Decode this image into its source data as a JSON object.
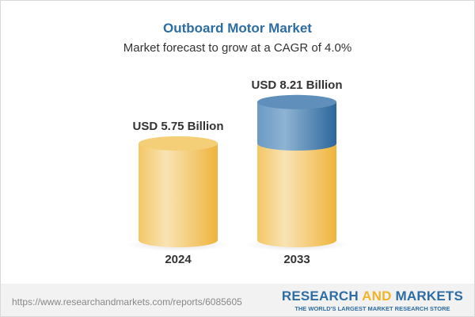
{
  "chart_data": {
    "type": "bar",
    "title": "Outboard Motor Market",
    "subtitle": "Market forecast to grow at a CAGR of 4.0%",
    "categories": [
      "2024",
      "2033"
    ],
    "values": [
      5.75,
      8.21
    ],
    "data_labels": [
      "USD 5.75 Billion",
      "USD 8.21 Billion"
    ],
    "unit": "USD Billion",
    "colors": {
      "base": "#f2c25a",
      "growth": "#4f86b5",
      "title": "#2e6da4"
    }
  },
  "footer": {
    "url": "https://www.researchandmarkets.com/reports/6085605",
    "logo_part1": "RESEARCH ",
    "logo_part2": "AND",
    "logo_part3": " MARKETS",
    "tagline": "THE WORLD'S LARGEST MARKET RESEARCH STORE"
  }
}
